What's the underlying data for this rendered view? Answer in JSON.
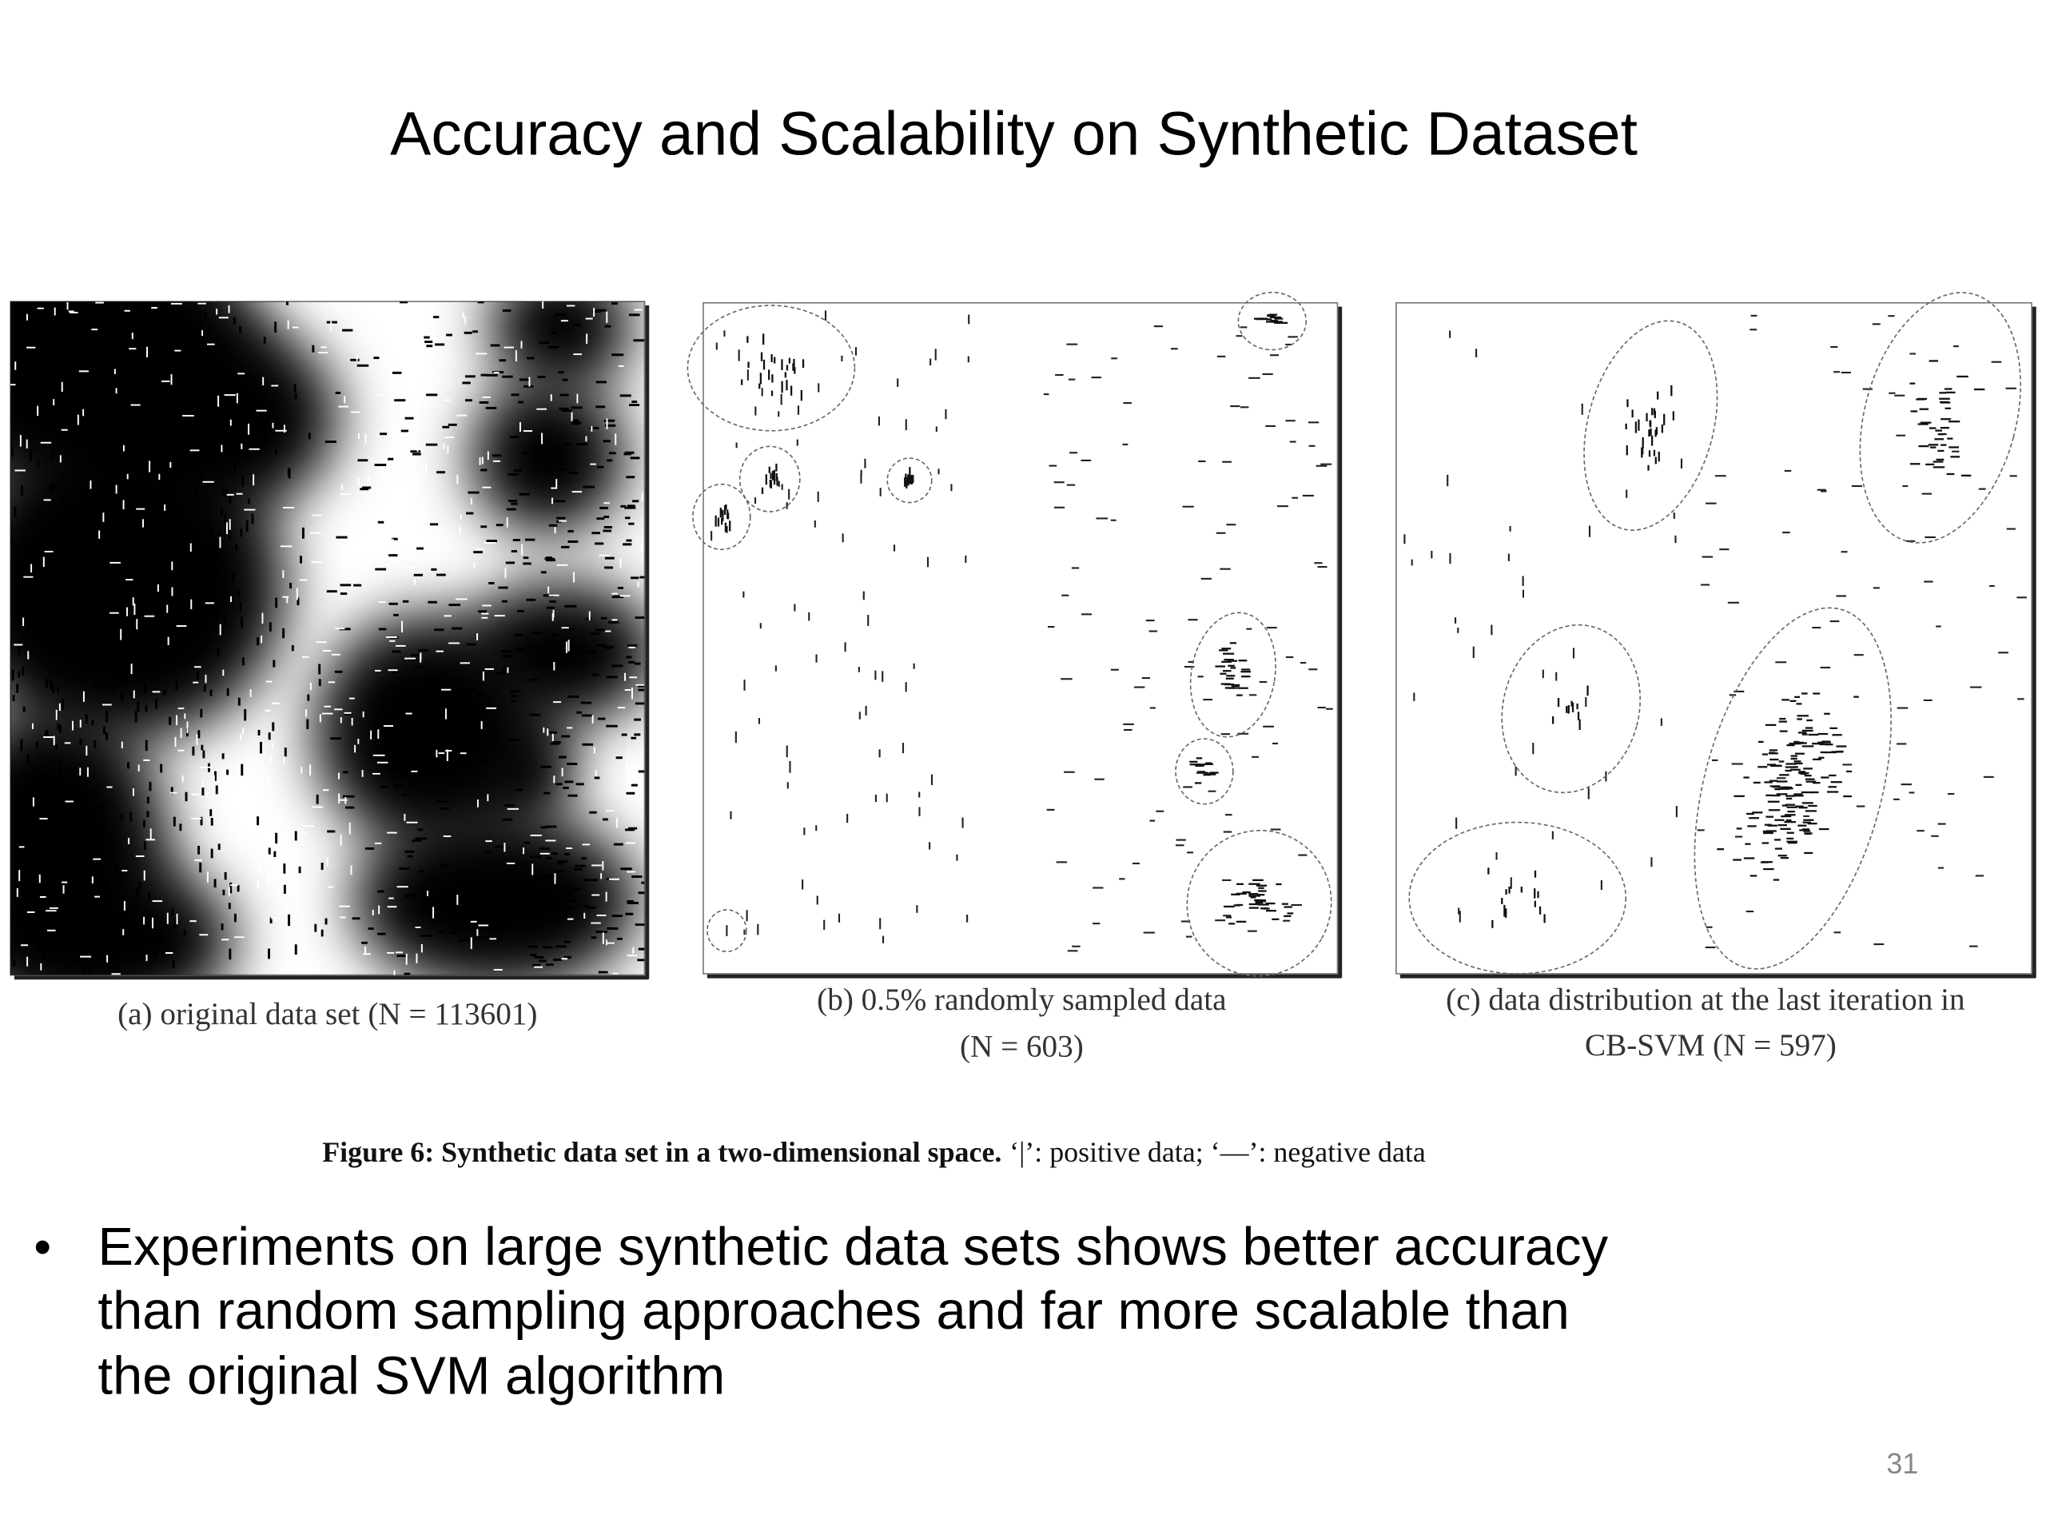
{
  "title": "Accuracy and Scalability on Synthetic Dataset",
  "figure": {
    "panels": [
      {
        "caption": [
          "(a) original data set (N = 113601)"
        ]
      },
      {
        "caption": [
          "(b) 0.5% randomly sampled data",
          "(N = 603)"
        ]
      },
      {
        "caption": [
          "(c) data distribution at the last iteration in",
          "CB-SVM (N = 597)"
        ]
      }
    ],
    "caption": {
      "label": "Figure 6: Synthetic data set in a two-dimensional space.",
      "text": "‘|’: positive data; ‘—’: negative data"
    }
  },
  "bullets": [
    {
      "lines": [
        "Experiments on large synthetic data sets shows better accuracy",
        "than random sampling approaches and far more scalable than",
        "the original SVM algorithm"
      ]
    }
  ],
  "page_number": "31"
}
